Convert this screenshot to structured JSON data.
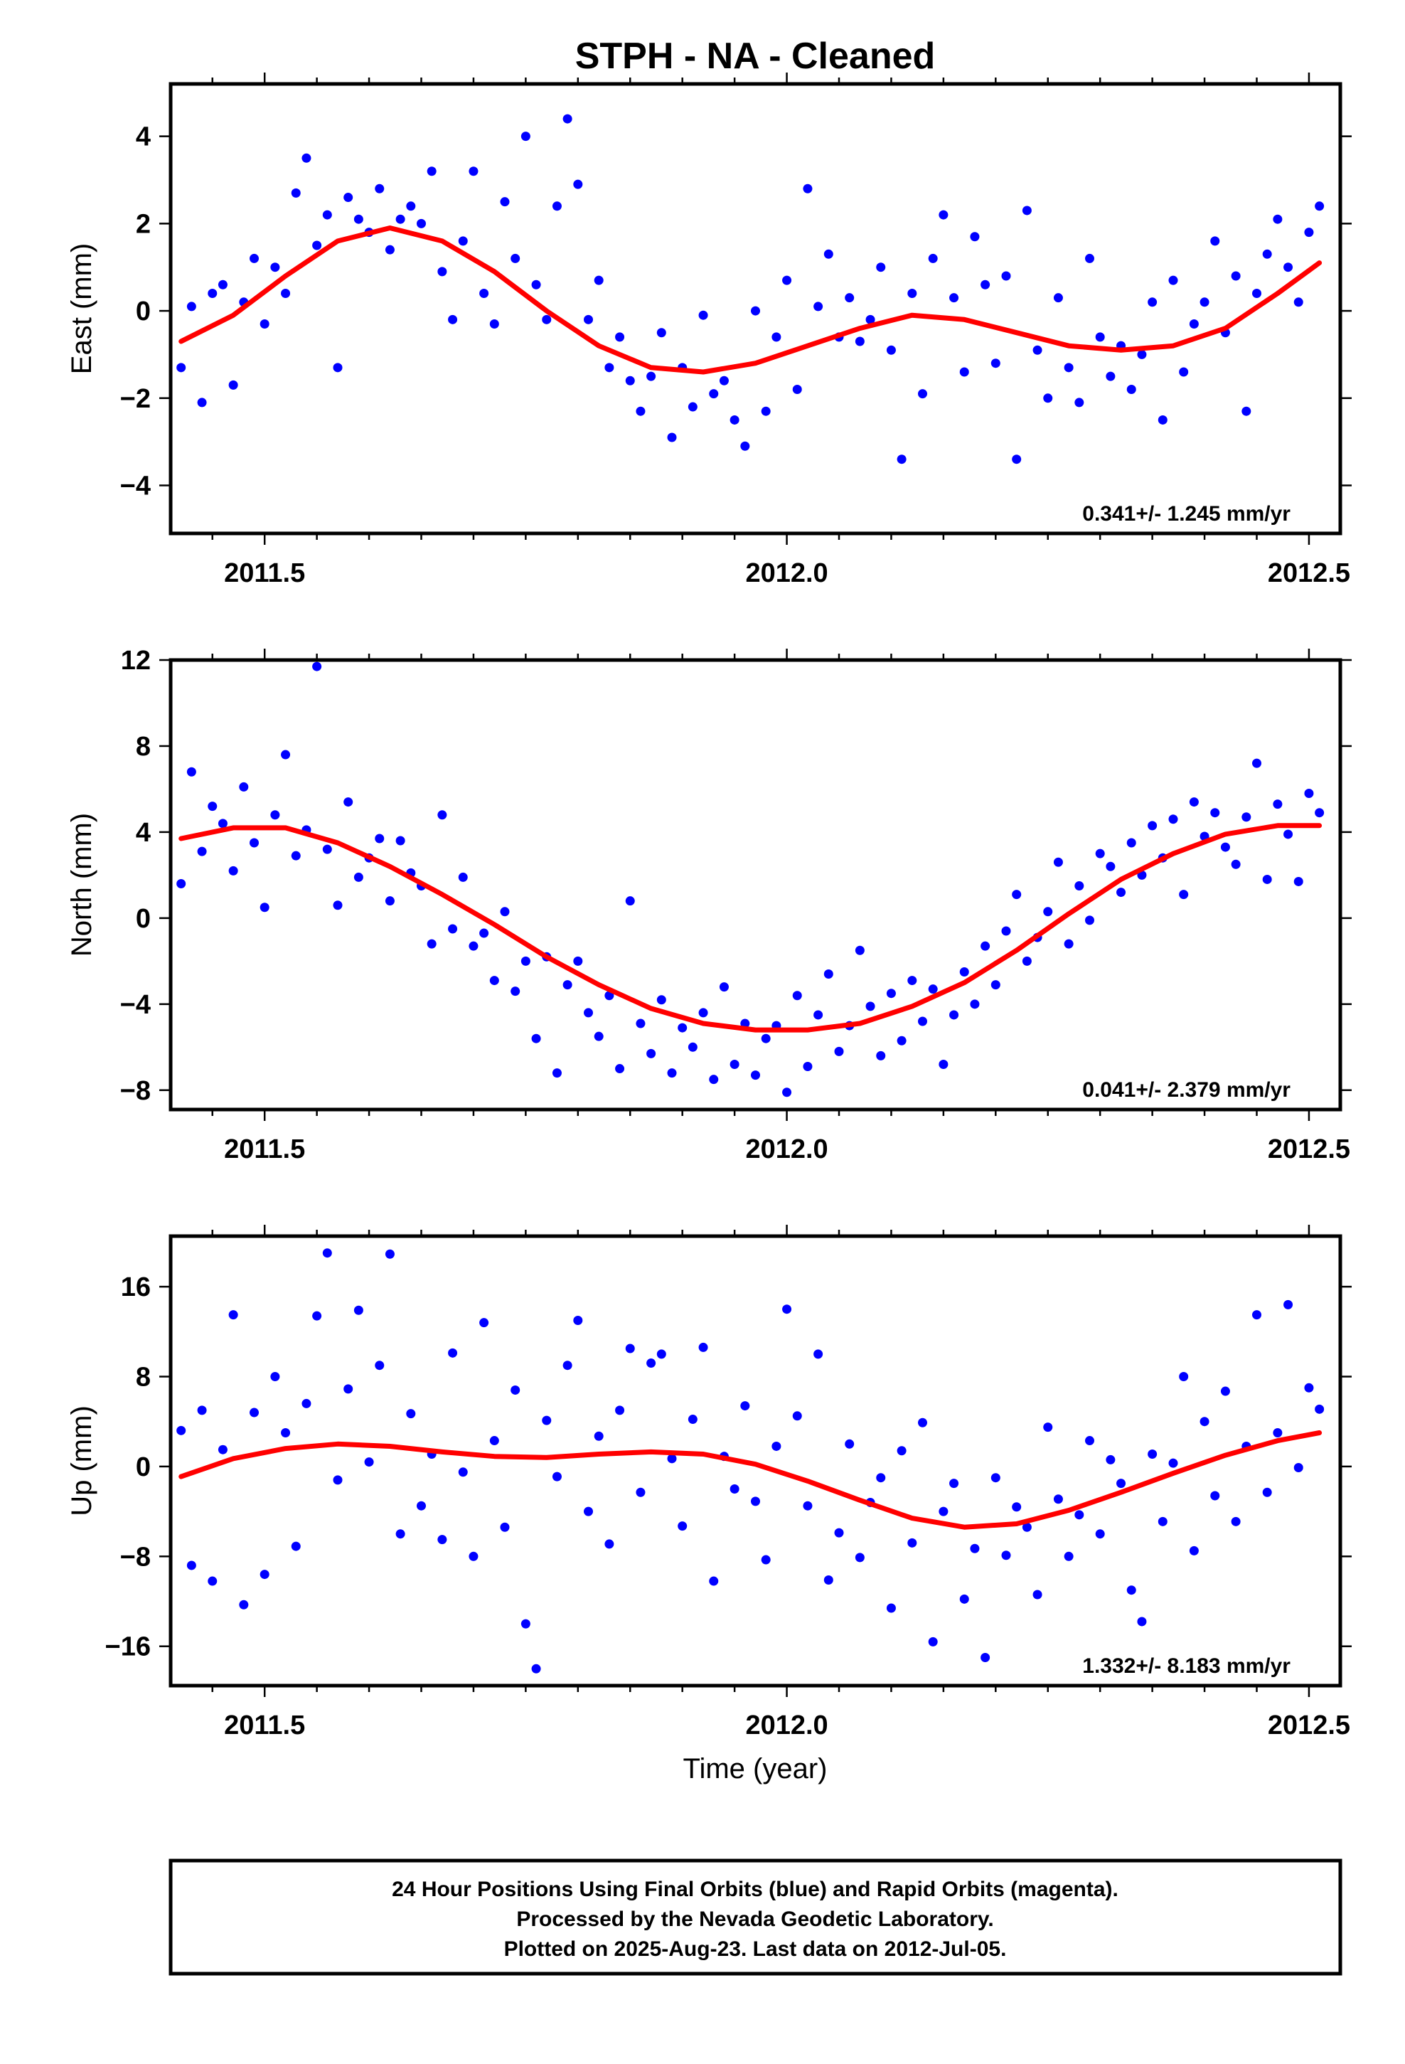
{
  "title": "STPH  - NA - Cleaned",
  "x_axis_label": "Time (year)",
  "caption": {
    "line1": "24 Hour Positions Using Final Orbits (blue) and Rapid Orbits (magenta).",
    "line2": "Processed by the Nevada Geodetic Laboratory.",
    "line3": "Plotted on 2025-Aug-23. Last data on 2012-Jul-05."
  },
  "colors": {
    "data_points": "#0000ff",
    "fit_curve": "#ff0000",
    "frame": "#000000"
  },
  "chart_data": [
    {
      "type": "scatter",
      "panel": "east",
      "ylabel": "East (mm)",
      "rate_label": "0.341+/- 1.245 mm/yr",
      "xlim": [
        2011.41,
        2012.53
      ],
      "ylim": [
        -5.1,
        5.2
      ],
      "xticks": [
        2011.5,
        2012.0,
        2012.5
      ],
      "xtick_labels": [
        "2011.5",
        "2012.0",
        "2012.5"
      ],
      "yticks": [
        -4,
        -2,
        0,
        2,
        4
      ],
      "ytick_labels": [
        "−4",
        "−2",
        "0",
        "2",
        "4"
      ],
      "series": [
        {
          "kind": "points",
          "x": [
            2011.42,
            2011.43,
            2011.44,
            2011.45,
            2011.46,
            2011.47,
            2011.48,
            2011.49,
            2011.5,
            2011.51,
            2011.52,
            2011.53,
            2011.54,
            2011.55,
            2011.56,
            2011.57,
            2011.58,
            2011.59,
            2011.6,
            2011.61,
            2011.62,
            2011.63,
            2011.64,
            2011.65,
            2011.66,
            2011.67,
            2011.68,
            2011.69,
            2011.7,
            2011.71,
            2011.72,
            2011.73,
            2011.74,
            2011.75,
            2011.76,
            2011.77,
            2011.78,
            2011.79,
            2011.8,
            2011.81,
            2011.82,
            2011.83,
            2011.84,
            2011.85,
            2011.86,
            2011.87,
            2011.88,
            2011.89,
            2011.9,
            2011.91,
            2011.92,
            2011.93,
            2011.94,
            2011.95,
            2011.96,
            2011.97,
            2011.98,
            2011.99,
            2012.0,
            2012.01,
            2012.02,
            2012.03,
            2012.04,
            2012.05,
            2012.06,
            2012.07,
            2012.08,
            2012.09,
            2012.1,
            2012.11,
            2012.12,
            2012.13,
            2012.14,
            2012.15,
            2012.16,
            2012.17,
            2012.18,
            2012.19,
            2012.2,
            2012.21,
            2012.22,
            2012.23,
            2012.24,
            2012.25,
            2012.26,
            2012.27,
            2012.28,
            2012.29,
            2012.3,
            2012.31,
            2012.32,
            2012.33,
            2012.34,
            2012.35,
            2012.36,
            2012.37,
            2012.38,
            2012.39,
            2012.4,
            2012.41,
            2012.42,
            2012.43,
            2012.44,
            2012.45,
            2012.46,
            2012.47,
            2012.48,
            2012.49,
            2012.5,
            2012.51
          ],
          "y": [
            -1.3,
            0.1,
            -2.1,
            0.4,
            0.6,
            -1.7,
            0.2,
            1.2,
            -0.3,
            1.0,
            0.4,
            2.7,
            3.5,
            1.5,
            2.2,
            -1.3,
            2.6,
            2.1,
            1.8,
            2.8,
            1.4,
            2.1,
            2.4,
            2.0,
            3.2,
            0.9,
            -0.2,
            1.6,
            3.2,
            0.4,
            -0.3,
            2.5,
            1.2,
            4.0,
            0.6,
            -0.2,
            2.4,
            4.4,
            2.9,
            -0.2,
            0.7,
            -1.3,
            -0.6,
            -1.6,
            -2.3,
            -1.5,
            -0.5,
            -2.9,
            -1.3,
            -2.2,
            -0.1,
            -1.9,
            -1.6,
            -2.5,
            -3.1,
            0.0,
            -2.3,
            -0.6,
            0.7,
            -1.8,
            2.8,
            0.1,
            1.3,
            -0.6,
            0.3,
            -0.7,
            -0.2,
            1.0,
            -0.9,
            -3.4,
            0.4,
            -1.9,
            1.2,
            2.2,
            0.3,
            -1.4,
            1.7,
            0.6,
            -1.2,
            0.8,
            -3.4,
            2.3,
            -0.9,
            -2.0,
            0.3,
            -1.3,
            -2.1,
            1.2,
            -0.6,
            -1.5,
            -0.8,
            -1.8,
            -1.0,
            0.2,
            -2.5,
            0.7,
            -1.4,
            -0.3,
            0.2,
            1.6,
            -0.5,
            0.8,
            -2.3,
            0.4,
            1.3,
            2.1,
            1.0,
            0.2,
            1.8,
            2.4
          ]
        },
        {
          "kind": "fit",
          "x": [
            2011.42,
            2011.47,
            2011.52,
            2011.57,
            2011.62,
            2011.67,
            2011.72,
            2011.77,
            2011.82,
            2011.87,
            2011.92,
            2011.97,
            2012.02,
            2012.07,
            2012.12,
            2012.17,
            2012.22,
            2012.27,
            2012.32,
            2012.37,
            2012.42,
            2012.47,
            2012.51
          ],
          "y": [
            -0.7,
            -0.1,
            0.8,
            1.6,
            1.9,
            1.6,
            0.9,
            0.0,
            -0.8,
            -1.3,
            -1.4,
            -1.2,
            -0.8,
            -0.4,
            -0.1,
            -0.2,
            -0.5,
            -0.8,
            -0.9,
            -0.8,
            -0.4,
            0.4,
            1.1
          ]
        }
      ]
    },
    {
      "type": "scatter",
      "panel": "north",
      "ylabel": "North (mm)",
      "rate_label": "0.041+/- 2.379 mm/yr",
      "xlim": [
        2011.41,
        2012.53
      ],
      "ylim": [
        -8.9,
        12.0
      ],
      "xticks": [
        2011.5,
        2012.0,
        2012.5
      ],
      "xtick_labels": [
        "2011.5",
        "2012.0",
        "2012.5"
      ],
      "yticks": [
        -8,
        -4,
        0,
        4,
        8,
        12
      ],
      "ytick_labels": [
        "−8",
        "−4",
        "0",
        "4",
        "8",
        "12"
      ],
      "series": [
        {
          "kind": "points",
          "x": [
            2011.42,
            2011.43,
            2011.44,
            2011.45,
            2011.46,
            2011.47,
            2011.48,
            2011.49,
            2011.5,
            2011.51,
            2011.52,
            2011.53,
            2011.54,
            2011.55,
            2011.56,
            2011.57,
            2011.58,
            2011.59,
            2011.6,
            2011.61,
            2011.62,
            2011.63,
            2011.64,
            2011.65,
            2011.66,
            2011.67,
            2011.68,
            2011.69,
            2011.7,
            2011.71,
            2011.72,
            2011.73,
            2011.74,
            2011.75,
            2011.76,
            2011.77,
            2011.78,
            2011.79,
            2011.8,
            2011.81,
            2011.82,
            2011.83,
            2011.84,
            2011.85,
            2011.86,
            2011.87,
            2011.88,
            2011.89,
            2011.9,
            2011.91,
            2011.92,
            2011.93,
            2011.94,
            2011.95,
            2011.96,
            2011.97,
            2011.98,
            2011.99,
            2012.0,
            2012.01,
            2012.02,
            2012.03,
            2012.04,
            2012.05,
            2012.06,
            2012.07,
            2012.08,
            2012.09,
            2012.1,
            2012.11,
            2012.12,
            2012.13,
            2012.14,
            2012.15,
            2012.16,
            2012.17,
            2012.18,
            2012.19,
            2012.2,
            2012.21,
            2012.22,
            2012.23,
            2012.24,
            2012.25,
            2012.26,
            2012.27,
            2012.28,
            2012.29,
            2012.3,
            2012.31,
            2012.32,
            2012.33,
            2012.34,
            2012.35,
            2012.36,
            2012.37,
            2012.38,
            2012.39,
            2012.4,
            2012.41,
            2012.42,
            2012.43,
            2012.44,
            2012.45,
            2012.46,
            2012.47,
            2012.48,
            2012.49,
            2012.5,
            2012.51
          ],
          "y": [
            1.6,
            6.8,
            3.1,
            5.2,
            4.4,
            2.2,
            6.1,
            3.5,
            0.5,
            4.8,
            7.6,
            2.9,
            4.1,
            11.7,
            3.2,
            0.6,
            5.4,
            1.9,
            2.8,
            3.7,
            0.8,
            3.6,
            2.1,
            1.5,
            -1.2,
            4.8,
            -0.5,
            1.9,
            -1.3,
            -0.7,
            -2.9,
            0.3,
            -3.4,
            -2.0,
            -5.6,
            -1.8,
            -7.2,
            -3.1,
            -2.0,
            -4.4,
            -5.5,
            -3.6,
            -7.0,
            0.8,
            -4.9,
            -6.3,
            -3.8,
            -7.2,
            -5.1,
            -6.0,
            -4.4,
            -7.5,
            -3.2,
            -6.8,
            -4.9,
            -7.3,
            -5.6,
            -5.0,
            -8.1,
            -3.6,
            -6.9,
            -4.5,
            -2.6,
            -6.2,
            -5.0,
            -1.5,
            -4.1,
            -6.4,
            -3.5,
            -5.7,
            -2.9,
            -4.8,
            -3.3,
            -6.8,
            -4.5,
            -2.5,
            -4.0,
            -1.3,
            -3.1,
            -0.6,
            1.1,
            -2.0,
            -0.9,
            0.3,
            2.6,
            -1.2,
            1.5,
            -0.1,
            3.0,
            2.4,
            1.2,
            3.5,
            2.0,
            4.3,
            2.8,
            4.6,
            1.1,
            5.4,
            3.8,
            4.9,
            3.3,
            2.5,
            4.7,
            7.2,
            1.8,
            5.3,
            3.9,
            1.7,
            5.8,
            4.9
          ]
        },
        {
          "kind": "fit",
          "x": [
            2011.42,
            2011.47,
            2011.52,
            2011.57,
            2011.62,
            2011.67,
            2011.72,
            2011.77,
            2011.82,
            2011.87,
            2011.92,
            2011.97,
            2012.02,
            2012.07,
            2012.12,
            2012.17,
            2012.22,
            2012.27,
            2012.32,
            2012.37,
            2012.42,
            2012.47,
            2012.51
          ],
          "y": [
            3.7,
            4.2,
            4.2,
            3.5,
            2.4,
            1.1,
            -0.3,
            -1.8,
            -3.1,
            -4.2,
            -4.9,
            -5.2,
            -5.2,
            -4.9,
            -4.1,
            -3.0,
            -1.5,
            0.2,
            1.8,
            3.0,
            3.9,
            4.3,
            4.3
          ]
        }
      ]
    },
    {
      "type": "scatter",
      "panel": "up",
      "ylabel": "Up (mm)",
      "rate_label": "1.332+/- 8.183 mm/yr",
      "xlim": [
        2011.41,
        2012.53
      ],
      "ylim": [
        -19.5,
        20.5
      ],
      "xticks": [
        2011.5,
        2012.0,
        2012.5
      ],
      "xtick_labels": [
        "2011.5",
        "2012.0",
        "2012.5"
      ],
      "yticks": [
        -16,
        -8,
        0,
        8,
        16
      ],
      "ytick_labels": [
        "−16",
        "−8",
        "0",
        "8",
        "16"
      ],
      "series": [
        {
          "kind": "points",
          "x": [
            2011.42,
            2011.43,
            2011.44,
            2011.45,
            2011.46,
            2011.47,
            2011.48,
            2011.49,
            2011.5,
            2011.51,
            2011.52,
            2011.53,
            2011.54,
            2011.55,
            2011.56,
            2011.57,
            2011.58,
            2011.59,
            2011.6,
            2011.61,
            2011.62,
            2011.63,
            2011.64,
            2011.65,
            2011.66,
            2011.67,
            2011.68,
            2011.69,
            2011.7,
            2011.71,
            2011.72,
            2011.73,
            2011.74,
            2011.75,
            2011.76,
            2011.77,
            2011.78,
            2011.79,
            2011.8,
            2011.81,
            2011.82,
            2011.83,
            2011.84,
            2011.85,
            2011.86,
            2011.87,
            2011.88,
            2011.89,
            2011.9,
            2011.91,
            2011.92,
            2011.93,
            2011.94,
            2011.95,
            2011.96,
            2011.97,
            2011.98,
            2011.99,
            2012.0,
            2012.01,
            2012.02,
            2012.03,
            2012.04,
            2012.05,
            2012.06,
            2012.07,
            2012.08,
            2012.09,
            2012.1,
            2012.11,
            2012.12,
            2012.13,
            2012.14,
            2012.15,
            2012.16,
            2012.17,
            2012.18,
            2012.19,
            2012.2,
            2012.21,
            2012.22,
            2012.23,
            2012.24,
            2012.25,
            2012.26,
            2012.27,
            2012.28,
            2012.29,
            2012.3,
            2012.31,
            2012.32,
            2012.33,
            2012.34,
            2012.35,
            2012.36,
            2012.37,
            2012.38,
            2012.39,
            2012.4,
            2012.41,
            2012.42,
            2012.43,
            2012.44,
            2012.45,
            2012.46,
            2012.47,
            2012.48,
            2012.49,
            2012.5,
            2012.51
          ],
          "y": [
            3.2,
            -8.8,
            5.0,
            -10.2,
            1.5,
            13.5,
            -12.3,
            4.8,
            -9.6,
            8.0,
            3.0,
            -7.1,
            5.6,
            13.4,
            19.0,
            -1.2,
            6.9,
            13.9,
            0.4,
            9.0,
            18.9,
            -6.0,
            4.7,
            -3.5,
            1.1,
            -6.5,
            10.1,
            -0.5,
            -8.0,
            12.8,
            2.3,
            -5.4,
            6.8,
            -14.0,
            -18.0,
            4.1,
            -0.9,
            9.0,
            13.0,
            -4.0,
            2.7,
            -6.9,
            5.0,
            10.5,
            -2.3,
            9.2,
            10.0,
            0.7,
            -5.3,
            4.2,
            10.6,
            -10.2,
            0.9,
            -2.0,
            5.4,
            -3.1,
            -8.3,
            1.8,
            14.0,
            4.5,
            -3.5,
            10.0,
            -10.1,
            -5.9,
            2.0,
            -8.1,
            -3.2,
            -1.0,
            -12.6,
            1.4,
            -6.8,
            3.9,
            -15.6,
            -4.0,
            -1.5,
            -11.8,
            -7.3,
            -17.0,
            -1.0,
            -7.9,
            -3.6,
            -5.4,
            -11.4,
            3.5,
            -2.9,
            -8.0,
            -4.3,
            2.3,
            -6.0,
            0.6,
            -1.5,
            -11.0,
            -13.8,
            1.1,
            -4.9,
            0.3,
            8.0,
            -7.5,
            4.0,
            -2.6,
            6.7,
            -4.9,
            1.8,
            13.5,
            -2.3,
            3.0,
            14.4,
            -0.1,
            7.0,
            5.1
          ]
        },
        {
          "kind": "fit",
          "x": [
            2011.42,
            2011.47,
            2011.52,
            2011.57,
            2011.62,
            2011.67,
            2011.72,
            2011.77,
            2011.82,
            2011.87,
            2011.92,
            2011.97,
            2012.02,
            2012.07,
            2012.12,
            2012.17,
            2012.22,
            2012.27,
            2012.32,
            2012.37,
            2012.42,
            2012.47,
            2012.51
          ],
          "y": [
            -0.9,
            0.7,
            1.6,
            2.0,
            1.8,
            1.3,
            0.9,
            0.8,
            1.1,
            1.3,
            1.1,
            0.2,
            -1.3,
            -3.0,
            -4.6,
            -5.4,
            -5.1,
            -3.9,
            -2.3,
            -0.6,
            1.0,
            2.3,
            3.0
          ]
        }
      ]
    }
  ]
}
